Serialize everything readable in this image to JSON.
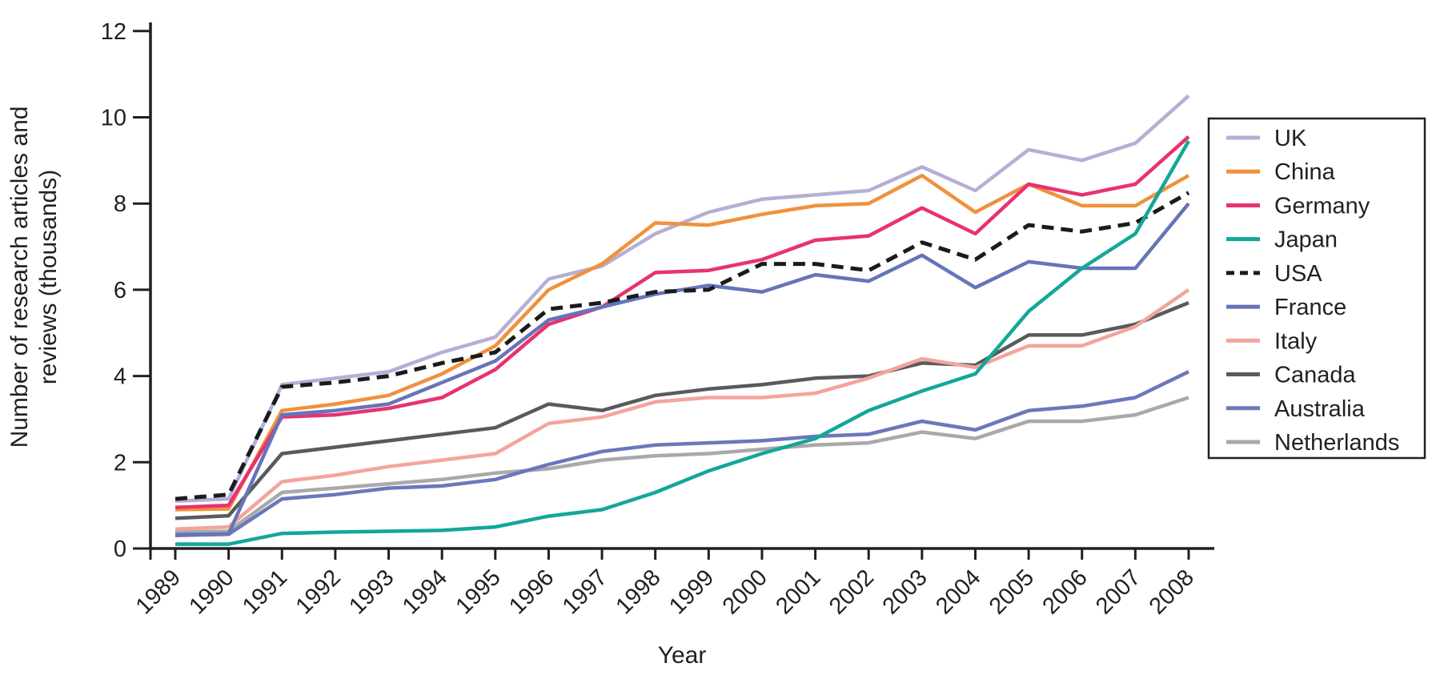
{
  "figure": {
    "xlabel": "Year",
    "ylabel_lines": [
      "Number of research articles and",
      "reviews (thousands)"
    ]
  },
  "colors": {
    "background": "#ffffff",
    "axis": "#231f20"
  },
  "chart_data": {
    "type": "line",
    "title": "",
    "xlabel": "Year",
    "ylabel": "Number of research articles and reviews (thousands)",
    "x": [
      1989,
      1990,
      1991,
      1992,
      1993,
      1994,
      1995,
      1996,
      1997,
      1998,
      1999,
      2000,
      2001,
      2002,
      2003,
      2004,
      2005,
      2006,
      2007,
      2008
    ],
    "ylim": [
      0,
      12
    ],
    "yticks": [
      0,
      2,
      4,
      6,
      8,
      10,
      12
    ],
    "grid": false,
    "legend_position": "right",
    "series": [
      {
        "name": "UK",
        "color": "#b5afd6",
        "dash": "solid",
        "values": [
          1.1,
          1.15,
          3.8,
          3.95,
          4.1,
          4.55,
          4.9,
          6.25,
          6.55,
          7.3,
          7.8,
          8.1,
          8.2,
          8.3,
          8.85,
          8.3,
          9.25,
          9.0,
          9.4,
          10.5
        ]
      },
      {
        "name": "China",
        "color": "#f0913c",
        "dash": "solid",
        "values": [
          0.9,
          0.92,
          3.2,
          3.35,
          3.55,
          4.05,
          4.7,
          6.0,
          6.6,
          7.55,
          7.5,
          7.75,
          7.95,
          8.0,
          8.65,
          7.8,
          8.45,
          7.95,
          7.95,
          8.65
        ]
      },
      {
        "name": "Germany",
        "color": "#e8326f",
        "dash": "solid",
        "values": [
          0.95,
          1.0,
          3.05,
          3.1,
          3.25,
          3.5,
          4.15,
          5.2,
          5.6,
          6.4,
          6.45,
          6.7,
          7.15,
          7.25,
          7.9,
          7.3,
          8.45,
          8.2,
          8.45,
          9.55
        ]
      },
      {
        "name": "Japan",
        "color": "#12a79a",
        "dash": "solid",
        "values": [
          0.1,
          0.1,
          0.35,
          0.38,
          0.4,
          0.42,
          0.5,
          0.75,
          0.9,
          1.3,
          1.8,
          2.2,
          2.55,
          3.2,
          3.65,
          4.05,
          5.5,
          6.5,
          7.3,
          9.45
        ]
      },
      {
        "name": "USA",
        "color": "#1b1b1b",
        "dash": "dashed",
        "values": [
          1.15,
          1.25,
          3.75,
          3.85,
          4.0,
          4.3,
          4.55,
          5.55,
          5.7,
          5.95,
          6.0,
          6.6,
          6.6,
          6.45,
          7.1,
          6.7,
          7.5,
          7.35,
          7.55,
          8.25
        ]
      },
      {
        "name": "France",
        "color": "#6674b8",
        "dash": "solid",
        "values": [
          0.32,
          0.34,
          3.1,
          3.2,
          3.35,
          3.85,
          4.35,
          5.3,
          5.6,
          5.9,
          6.1,
          5.95,
          6.35,
          6.2,
          6.8,
          6.05,
          6.65,
          6.5,
          6.5,
          8.0
        ]
      },
      {
        "name": "Italy",
        "color": "#f3a49e",
        "dash": "solid",
        "values": [
          0.45,
          0.5,
          1.55,
          1.7,
          1.9,
          2.05,
          2.2,
          2.9,
          3.05,
          3.4,
          3.5,
          3.5,
          3.6,
          3.95,
          4.4,
          4.2,
          4.7,
          4.7,
          5.15,
          6.0
        ]
      },
      {
        "name": "Canada",
        "color": "#595a5c",
        "dash": "solid",
        "values": [
          0.7,
          0.76,
          2.2,
          2.35,
          2.5,
          2.65,
          2.8,
          3.35,
          3.2,
          3.55,
          3.7,
          3.8,
          3.95,
          4.0,
          4.3,
          4.25,
          4.95,
          4.95,
          5.2,
          5.7
        ]
      },
      {
        "name": "Australia",
        "color": "#6a78ba",
        "dash": "solid",
        "values": [
          0.3,
          0.33,
          1.15,
          1.25,
          1.4,
          1.45,
          1.6,
          1.95,
          2.25,
          2.4,
          2.45,
          2.5,
          2.6,
          2.65,
          2.95,
          2.75,
          3.2,
          3.3,
          3.5,
          4.1
        ]
      },
      {
        "name": "Netherlands",
        "color": "#a9a9ab",
        "dash": "solid",
        "values": [
          0.38,
          0.4,
          1.3,
          1.4,
          1.5,
          1.6,
          1.75,
          1.85,
          2.05,
          2.15,
          2.2,
          2.3,
          2.4,
          2.45,
          2.7,
          2.55,
          2.95,
          2.95,
          3.1,
          3.5
        ]
      }
    ]
  }
}
